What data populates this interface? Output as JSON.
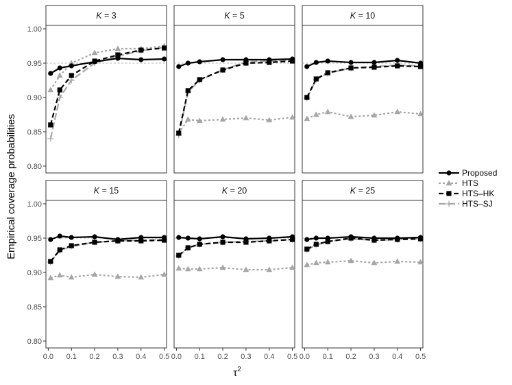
{
  "chart_data": {
    "type": "line",
    "ylabel": "Empirical coverage probabilities",
    "xlabel": "τ",
    "xlabel_superscript": "2",
    "x": [
      0.01,
      0.05,
      0.1,
      0.2,
      0.3,
      0.4,
      0.5
    ],
    "x_ticks": [
      "0.0",
      "0.1",
      "0.2",
      "0.3",
      "0.4",
      "0.5"
    ],
    "y_ticks": [
      "0.80",
      "0.85",
      "0.90",
      "0.95",
      "1.00"
    ],
    "xlim": [
      -0.01,
      0.51
    ],
    "ylim": [
      0.79,
      1.005
    ],
    "reference_line": 0.95,
    "legend_position": "right",
    "series_styles": [
      {
        "name": "Proposed",
        "color": "#000000",
        "dash": "solid",
        "marker": "circle"
      },
      {
        "name": "HTS",
        "color": "#a6a6a6",
        "dash": "dotted",
        "marker": "triangle"
      },
      {
        "name": "HTS–HK",
        "color": "#000000",
        "dash": "dashed",
        "marker": "square"
      },
      {
        "name": "HTS–SJ",
        "color": "#a6a6a6",
        "dash": "longdash",
        "marker": "plus"
      }
    ],
    "panels": [
      {
        "k_symbol": "K",
        "k_eq": " = 3",
        "series": [
          {
            "name": "Proposed",
            "values": [
              0.935,
              0.943,
              0.946,
              0.952,
              0.957,
              0.955,
              0.956
            ]
          },
          {
            "name": "HTS",
            "values": [
              0.911,
              0.932,
              0.95,
              0.965,
              0.971,
              0.971,
              0.975
            ]
          },
          {
            "name": "HTS–HK",
            "values": [
              0.86,
              0.911,
              0.932,
              0.953,
              0.962,
              0.969,
              0.972
            ]
          },
          {
            "name": "HTS–SJ",
            "values": [
              0.84,
              0.9,
              0.925,
              0.95,
              0.96,
              0.968,
              0.973
            ]
          }
        ]
      },
      {
        "k_symbol": "K",
        "k_eq": " = 5",
        "series": [
          {
            "name": "Proposed",
            "values": [
              0.945,
              0.95,
              0.952,
              0.955,
              0.955,
              0.955,
              0.956
            ]
          },
          {
            "name": "HTS",
            "values": [
              0.848,
              0.868,
              0.866,
              0.868,
              0.87,
              0.867,
              0.871
            ]
          },
          {
            "name": "HTS–HK",
            "values": [
              0.848,
              0.91,
              0.926,
              0.94,
              0.95,
              0.951,
              0.953
            ]
          },
          {
            "name": "HTS–SJ",
            "values": [
              0.845,
              0.908,
              0.925,
              0.94,
              0.952,
              0.953,
              0.954
            ]
          }
        ]
      },
      {
        "k_symbol": "K",
        "k_eq": " = 10",
        "series": [
          {
            "name": "Proposed",
            "values": [
              0.945,
              0.951,
              0.953,
              0.951,
              0.951,
              0.954,
              0.95
            ]
          },
          {
            "name": "HTS",
            "values": [
              0.869,
              0.875,
              0.879,
              0.872,
              0.874,
              0.879,
              0.876
            ]
          },
          {
            "name": "HTS–HK",
            "values": [
              0.9,
              0.927,
              0.936,
              0.943,
              0.944,
              0.946,
              0.945
            ]
          },
          {
            "name": "HTS–SJ",
            "values": [
              0.899,
              0.926,
              0.935,
              0.943,
              0.945,
              0.947,
              0.946
            ]
          }
        ]
      },
      {
        "k_symbol": "K",
        "k_eq": " = 15",
        "series": [
          {
            "name": "Proposed",
            "values": [
              0.948,
              0.953,
              0.951,
              0.952,
              0.948,
              0.951,
              0.951
            ]
          },
          {
            "name": "HTS",
            "values": [
              0.892,
              0.896,
              0.893,
              0.897,
              0.894,
              0.893,
              0.897
            ]
          },
          {
            "name": "HTS–HK",
            "values": [
              0.916,
              0.933,
              0.939,
              0.944,
              0.946,
              0.946,
              0.947
            ]
          },
          {
            "name": "HTS–SJ",
            "values": [
              0.915,
              0.932,
              0.938,
              0.944,
              0.946,
              0.947,
              0.948
            ]
          }
        ]
      },
      {
        "k_symbol": "K",
        "k_eq": " = 20",
        "series": [
          {
            "name": "Proposed",
            "values": [
              0.951,
              0.95,
              0.949,
              0.952,
              0.949,
              0.95,
              0.952
            ]
          },
          {
            "name": "HTS",
            "values": [
              0.906,
              0.905,
              0.905,
              0.907,
              0.904,
              0.904,
              0.907
            ]
          },
          {
            "name": "HTS–HK",
            "values": [
              0.925,
              0.936,
              0.941,
              0.944,
              0.944,
              0.946,
              0.948
            ]
          },
          {
            "name": "HTS–SJ",
            "values": [
              0.924,
              0.936,
              0.941,
              0.944,
              0.945,
              0.946,
              0.948
            ]
          }
        ]
      },
      {
        "k_symbol": "K",
        "k_eq": " = 25",
        "series": [
          {
            "name": "Proposed",
            "values": [
              0.948,
              0.95,
              0.95,
              0.952,
              0.95,
              0.95,
              0.951
            ]
          },
          {
            "name": "HTS",
            "values": [
              0.911,
              0.914,
              0.915,
              0.917,
              0.914,
              0.916,
              0.915
            ]
          },
          {
            "name": "HTS–HK",
            "values": [
              0.934,
              0.941,
              0.945,
              0.95,
              0.947,
              0.948,
              0.949
            ]
          },
          {
            "name": "HTS–SJ",
            "values": [
              0.933,
              0.94,
              0.945,
              0.949,
              0.947,
              0.948,
              0.949
            ]
          }
        ]
      }
    ]
  }
}
